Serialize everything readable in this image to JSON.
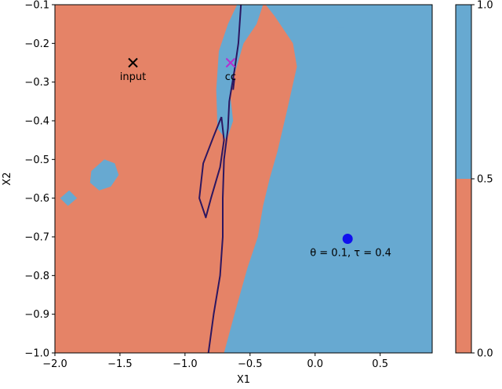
{
  "chart_data": {
    "type": "contour",
    "xlabel": "X1",
    "ylabel": "X2",
    "xlim": [
      -2.0,
      0.9
    ],
    "ylim": [
      -1.0,
      -0.1
    ],
    "xticks": [
      -2.0,
      -1.5,
      -1.0,
      -0.5,
      0.0,
      0.5
    ],
    "xtick_labels": [
      "−2.0",
      "−1.5",
      "−1.0",
      "−0.5",
      "0.0",
      "0.5"
    ],
    "yticks": [
      -0.1,
      -0.2,
      -0.3,
      -0.4,
      -0.5,
      -0.6,
      -0.7,
      -0.8,
      -0.9,
      -1.0
    ],
    "ytick_labels": [
      "−0.1",
      "−0.2",
      "−0.3",
      "−0.4",
      "−0.5",
      "−0.6",
      "−0.7",
      "−0.8",
      "−0.9",
      "−1.0"
    ],
    "colors": {
      "low": "#e58367",
      "high": "#67a9d1",
      "boundary": "#2c1660",
      "input": "#000000",
      "cc": "#b52fcf",
      "point": "#1010ee"
    },
    "colorbar": {
      "ticks": [
        0.0,
        0.5,
        1.0
      ],
      "tick_labels": [
        "0.0",
        "0.5",
        "1.0"
      ],
      "bands": [
        {
          "from": 0.0,
          "to": 0.5,
          "color": "#e58367"
        },
        {
          "from": 0.5,
          "to": 1.0,
          "color": "#67a9d1"
        }
      ]
    },
    "regions_high": [
      [
        [
          -0.38,
          -0.1
        ],
        [
          0.9,
          -0.1
        ],
        [
          0.9,
          -1.0
        ],
        [
          -0.7,
          -1.0
        ],
        [
          -0.62,
          -0.9
        ],
        [
          -0.52,
          -0.78
        ],
        [
          -0.44,
          -0.7
        ],
        [
          -0.4,
          -0.62
        ],
        [
          -0.35,
          -0.55
        ],
        [
          -0.29,
          -0.48
        ],
        [
          -0.22,
          -0.38
        ],
        [
          -0.14,
          -0.26
        ],
        [
          -0.17,
          -0.2
        ],
        [
          -0.31,
          -0.13
        ]
      ],
      [
        [
          -0.6,
          -0.1
        ],
        [
          -0.4,
          -0.1
        ],
        [
          -0.45,
          -0.15
        ],
        [
          -0.55,
          -0.2
        ],
        [
          -0.62,
          -0.28
        ],
        [
          -0.65,
          -0.34
        ],
        [
          -0.63,
          -0.4
        ],
        [
          -0.68,
          -0.45
        ],
        [
          -0.75,
          -0.42
        ],
        [
          -0.76,
          -0.32
        ],
        [
          -0.74,
          -0.22
        ],
        [
          -0.67,
          -0.15
        ]
      ],
      [
        [
          0.1,
          -0.1
        ],
        [
          0.28,
          -0.1
        ],
        [
          0.23,
          -0.16
        ],
        [
          0.17,
          -0.16
        ]
      ],
      [
        [
          -1.72,
          -0.53
        ],
        [
          -1.62,
          -0.5
        ],
        [
          -1.54,
          -0.51
        ],
        [
          -1.51,
          -0.54
        ],
        [
          -1.57,
          -0.57
        ],
        [
          -1.66,
          -0.58
        ],
        [
          -1.73,
          -0.56
        ]
      ],
      [
        [
          -1.96,
          -0.6
        ],
        [
          -1.89,
          -0.58
        ],
        [
          -1.83,
          -0.6
        ],
        [
          -1.9,
          -0.62
        ]
      ]
    ],
    "boundaries": [
      [
        [
          -0.57,
          -0.1
        ],
        [
          -0.59,
          -0.2
        ],
        [
          -0.62,
          -0.27
        ],
        [
          -0.66,
          -0.35
        ],
        [
          -0.67,
          -0.42
        ],
        [
          -0.7,
          -0.5
        ],
        [
          -0.71,
          -0.6
        ],
        [
          -0.71,
          -0.7
        ],
        [
          -0.73,
          -0.8
        ],
        [
          -0.78,
          -0.9
        ],
        [
          -0.82,
          -1.0
        ]
      ],
      [
        [
          -0.72,
          -0.39
        ],
        [
          -0.7,
          -0.45
        ],
        [
          -0.73,
          -0.52
        ],
        [
          -0.8,
          -0.6
        ],
        [
          -0.84,
          -0.65
        ],
        [
          -0.89,
          -0.6
        ],
        [
          -0.86,
          -0.51
        ],
        [
          -0.78,
          -0.44
        ],
        [
          -0.72,
          -0.39
        ]
      ],
      [
        [
          -0.62,
          -0.29
        ],
        [
          -0.63,
          -0.32
        ]
      ]
    ],
    "markers": [
      {
        "label": "input",
        "x": -1.4,
        "y": -0.25,
        "symbol": "x",
        "color": "#000000"
      },
      {
        "label": "cc",
        "x": -0.65,
        "y": -0.25,
        "symbol": "x",
        "color": "#b52fcf"
      },
      {
        "label": "θ = 0.1, τ = 0.4",
        "x": 0.25,
        "y": -0.705,
        "symbol": "o",
        "color": "#1010ee"
      }
    ]
  }
}
